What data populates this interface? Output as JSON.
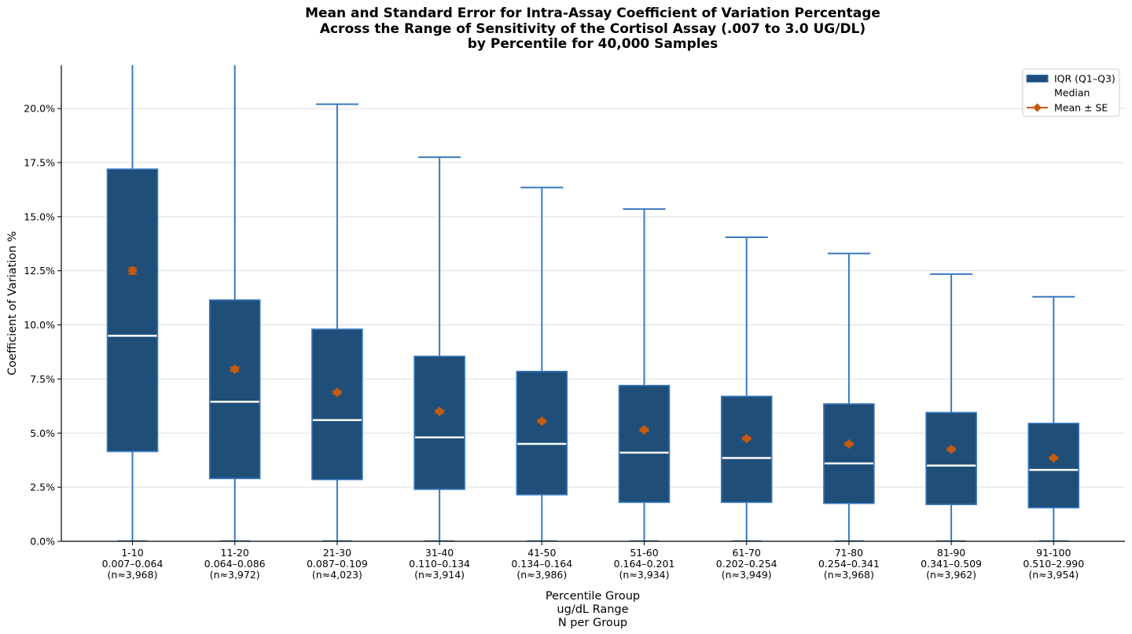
{
  "chart_data": {
    "type": "boxplot",
    "title_lines": [
      "Mean and Standard Error for Intra-Assay Coefficient of Variation Percentage",
      "Across the Range of Sensitivity of the Cortisol Assay (.007 to 3.0 UG/DL)",
      "by Percentile for 40,000 Samples"
    ],
    "xlabel_lines": [
      "Percentile Group",
      "ug/dL Range",
      "N per Group"
    ],
    "ylabel": "Coefficient of Variation %",
    "ylim": [
      0,
      22
    ],
    "yticks": [
      0,
      2.5,
      5,
      7.5,
      10,
      12.5,
      15,
      17.5,
      20
    ],
    "ytick_labels": [
      "0.0%",
      "2.5%",
      "5.0%",
      "7.5%",
      "10.0%",
      "12.5%",
      "15.0%",
      "17.5%",
      "20.0%"
    ],
    "grid": "horizontal",
    "legend_position": "top-right",
    "legend": [
      {
        "label": "IQR (Q1–Q3)",
        "kind": "box"
      },
      {
        "label": "Median",
        "kind": "median"
      },
      {
        "label": "Mean ± SE",
        "kind": "mean"
      }
    ],
    "colors": {
      "box_fill": "#1f4e79",
      "box_edge": "#3a7abf",
      "whisker": "#3a7abf",
      "median": "#ffffff",
      "mean": "#c55a11",
      "grid": "#dddddd",
      "axis": "#000000"
    },
    "groups": [
      {
        "label": "1-10",
        "range": "0.007–0.064",
        "n": "(n≈3,968)",
        "whisker_low": 0,
        "q1": 4.15,
        "median": 9.5,
        "q3": 17.2,
        "whisker_high": 22.0,
        "mean": 12.5,
        "se": 0.15
      },
      {
        "label": "11-20",
        "range": "0.064–0.086",
        "n": "(n≈3,972)",
        "whisker_low": 0,
        "q1": 2.9,
        "median": 6.45,
        "q3": 11.15,
        "whisker_high": 22.0,
        "mean": 7.95,
        "se": 0.1
      },
      {
        "label": "21-30",
        "range": "0.087–0.109",
        "n": "(n≈4,023)",
        "whisker_low": 0,
        "q1": 2.85,
        "median": 5.6,
        "q3": 9.8,
        "whisker_high": 20.2,
        "mean": 6.88,
        "se": 0.08
      },
      {
        "label": "31-40",
        "range": "0.110–0.134",
        "n": "(n≈3,914)",
        "whisker_low": 0,
        "q1": 2.4,
        "median": 4.8,
        "q3": 8.55,
        "whisker_high": 17.75,
        "mean": 6.0,
        "se": 0.07
      },
      {
        "label": "41-50",
        "range": "0.134–0.164",
        "n": "(n≈3,986)",
        "whisker_low": 0,
        "q1": 2.15,
        "median": 4.5,
        "q3": 7.85,
        "whisker_high": 16.35,
        "mean": 5.55,
        "se": 0.07
      },
      {
        "label": "51-60",
        "range": "0.164–0.201",
        "n": "(n≈3,934)",
        "whisker_low": 0,
        "q1": 1.8,
        "median": 4.1,
        "q3": 7.2,
        "whisker_high": 15.35,
        "mean": 5.15,
        "se": 0.07
      },
      {
        "label": "61-70",
        "range": "0.202–0.254",
        "n": "(n≈3,949)",
        "whisker_low": 0,
        "q1": 1.8,
        "median": 3.85,
        "q3": 6.7,
        "whisker_high": 14.05,
        "mean": 4.75,
        "se": 0.06
      },
      {
        "label": "71-80",
        "range": "0.254–0.341",
        "n": "(n≈3,968)",
        "whisker_low": 0,
        "q1": 1.75,
        "median": 3.6,
        "q3": 6.35,
        "whisker_high": 13.3,
        "mean": 4.5,
        "se": 0.06
      },
      {
        "label": "81-90",
        "range": "0.341–0.509",
        "n": "(n≈3,962)",
        "whisker_low": 0,
        "q1": 1.7,
        "median": 3.5,
        "q3": 5.95,
        "whisker_high": 12.35,
        "mean": 4.25,
        "se": 0.06
      },
      {
        "label": "91-100",
        "range": "0.510–2.990",
        "n": "(n≈3,954)",
        "whisker_low": 0,
        "q1": 1.55,
        "median": 3.3,
        "q3": 5.45,
        "whisker_high": 11.3,
        "mean": 3.85,
        "se": 0.05
      }
    ]
  }
}
